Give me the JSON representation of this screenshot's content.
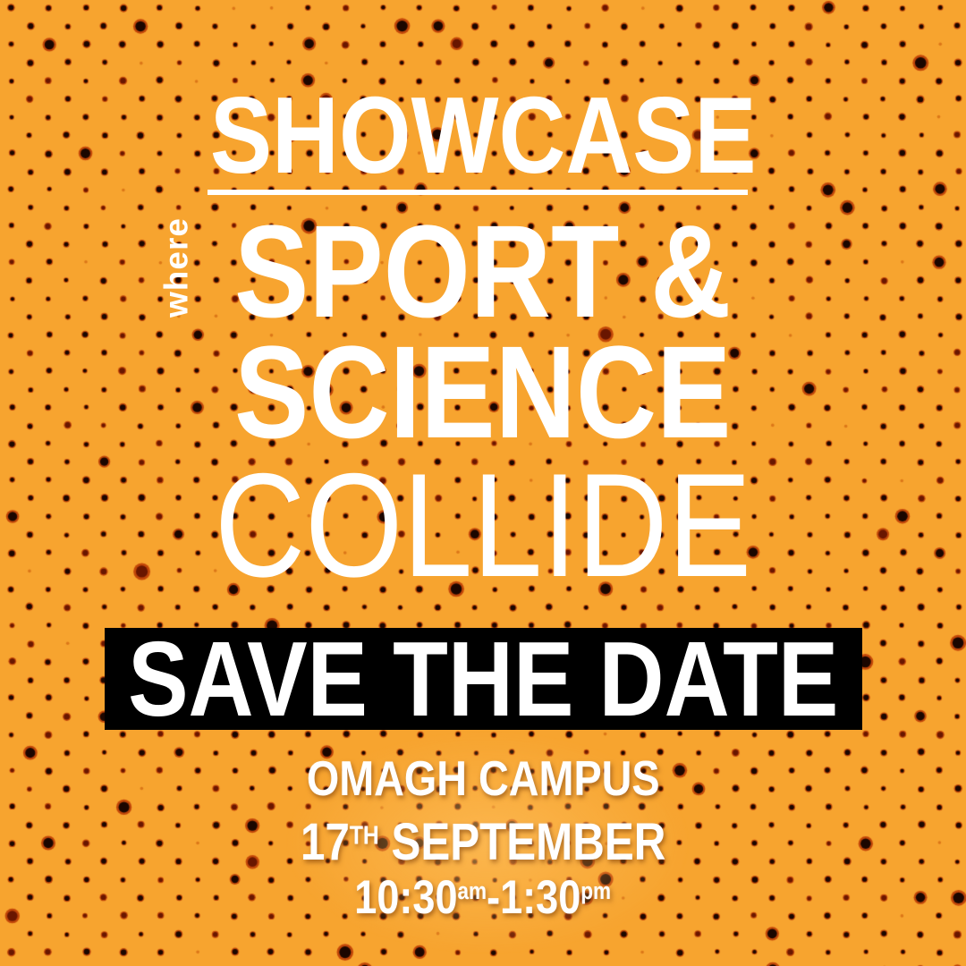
{
  "poster": {
    "heading": "SHOWCASE",
    "where_label": "where",
    "line_sport": "SPORT &",
    "line_science": "SCIENCE",
    "line_collide": "COLLIDE",
    "banner_label": "SAVE THE DATE",
    "venue": "OMAGH CAMPUS",
    "date": {
      "day": "17",
      "ordinal": "TH",
      "month": "SEPTEMBER"
    },
    "time": {
      "start": "10:30",
      "start_period": "am",
      "separator": "-",
      "end": "1:30",
      "end_period": "pm"
    },
    "colors": {
      "background": "#F7A42F",
      "banner_background": "#000000",
      "text": "#FFFFFF",
      "dot_core": "#140400",
      "dot_ring": "#B63200",
      "glow": "#FFC364"
    }
  }
}
